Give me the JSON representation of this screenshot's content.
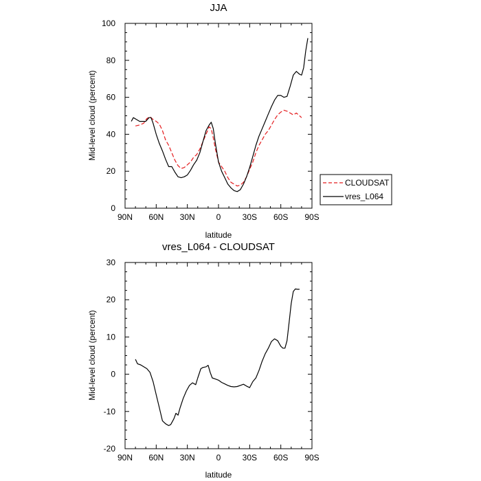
{
  "chart_data": [
    {
      "type": "line",
      "title": "JJA",
      "xlabel": "latitude",
      "ylabel": "Mid-level cloud (percent)",
      "xlim": [
        90,
        -90
      ],
      "ylim": [
        0,
        100
      ],
      "xticks": [
        90,
        60,
        30,
        0,
        -30,
        -60,
        -90
      ],
      "xticklabels": [
        "90N",
        "60N",
        "30N",
        "0",
        "30S",
        "60S",
        "90S"
      ],
      "yticks": [
        0,
        20,
        40,
        60,
        80,
        100
      ],
      "yticklabels": [
        "0",
        "20",
        "40",
        "60",
        "80",
        "100"
      ],
      "legend": {
        "position": "right",
        "entries": [
          "CLOUDSAT",
          "vres_L064"
        ]
      },
      "series": [
        {
          "name": "CLOUDSAT",
          "color": "#e41a1c",
          "dash": "dashed",
          "points": [
            [
              80,
              44.5
            ],
            [
              76,
              45
            ],
            [
              72,
              46
            ],
            [
              69,
              48.5
            ],
            [
              66,
              49.5
            ],
            [
              63,
              48
            ],
            [
              60,
              47
            ],
            [
              57,
              45.5
            ],
            [
              54,
              42
            ],
            [
              51,
              37
            ],
            [
              48,
              34
            ],
            [
              45,
              30
            ],
            [
              42,
              26
            ],
            [
              39,
              23
            ],
            [
              36,
              21.5
            ],
            [
              33,
              22
            ],
            [
              30,
              23.5
            ],
            [
              27,
              25
            ],
            [
              24,
              27.5
            ],
            [
              21,
              29
            ],
            [
              18,
              32
            ],
            [
              15,
              36
            ],
            [
              12,
              40
            ],
            [
              9,
              44
            ],
            [
              7,
              43
            ],
            [
              5,
              38
            ],
            [
              3,
              32
            ],
            [
              0,
              25
            ],
            [
              -3,
              22.5
            ],
            [
              -6,
              20
            ],
            [
              -9,
              16.5
            ],
            [
              -12,
              14
            ],
            [
              -15,
              13
            ],
            [
              -18,
              12
            ],
            [
              -21,
              12.5
            ],
            [
              -24,
              14
            ],
            [
              -27,
              17
            ],
            [
              -30,
              21
            ],
            [
              -33,
              25
            ],
            [
              -36,
              30
            ],
            [
              -39,
              34
            ],
            [
              -42,
              37
            ],
            [
              -45,
              40
            ],
            [
              -48,
              42
            ],
            [
              -51,
              45
            ],
            [
              -54,
              48
            ],
            [
              -57,
              50.5
            ],
            [
              -60,
              52
            ],
            [
              -63,
              53
            ],
            [
              -66,
              52.5
            ],
            [
              -69,
              51.5
            ],
            [
              -72,
              50.5
            ],
            [
              -75,
              51.5
            ],
            [
              -78,
              50
            ],
            [
              -80,
              49
            ]
          ]
        },
        {
          "name": "vres_L064",
          "color": "#000000",
          "dash": "solid",
          "points": [
            [
              84,
              47
            ],
            [
              82,
              49
            ],
            [
              79,
              48
            ],
            [
              76,
              47
            ],
            [
              73,
              47
            ],
            [
              70,
              47
            ],
            [
              67,
              49
            ],
            [
              65,
              49
            ],
            [
              63,
              46
            ],
            [
              60,
              40
            ],
            [
              57,
              35
            ],
            [
              54,
              31
            ],
            [
              51,
              26.5
            ],
            [
              48,
              22.5
            ],
            [
              45,
              22.5
            ],
            [
              42,
              19.5
            ],
            [
              39,
              17
            ],
            [
              36,
              16.5
            ],
            [
              33,
              17
            ],
            [
              30,
              18
            ],
            [
              27,
              20.5
            ],
            [
              24,
              23.5
            ],
            [
              21,
              26
            ],
            [
              18,
              30
            ],
            [
              15,
              36
            ],
            [
              12,
              42
            ],
            [
              9,
              45
            ],
            [
              7,
              46.5
            ],
            [
              5,
              43
            ],
            [
              3,
              35
            ],
            [
              0,
              25
            ],
            [
              -3,
              20
            ],
            [
              -6,
              16.5
            ],
            [
              -9,
              13
            ],
            [
              -12,
              11
            ],
            [
              -15,
              9.5
            ],
            [
              -18,
              9
            ],
            [
              -21,
              10
            ],
            [
              -24,
              13
            ],
            [
              -27,
              17
            ],
            [
              -30,
              22
            ],
            [
              -33,
              28
            ],
            [
              -36,
              34
            ],
            [
              -39,
              39
            ],
            [
              -42,
              43
            ],
            [
              -45,
              47
            ],
            [
              -48,
              51
            ],
            [
              -51,
              55
            ],
            [
              -54,
              58.5
            ],
            [
              -57,
              61
            ],
            [
              -60,
              61
            ],
            [
              -63,
              60
            ],
            [
              -66,
              60.5
            ],
            [
              -69,
              66
            ],
            [
              -72,
              72
            ],
            [
              -75,
              74
            ],
            [
              -78,
              72.5
            ],
            [
              -80,
              72
            ],
            [
              -82,
              76
            ],
            [
              -84,
              85
            ],
            [
              -86,
              92
            ]
          ]
        }
      ]
    },
    {
      "type": "line",
      "title": "vres_L064 - CLOUDSAT",
      "xlabel": "latitude",
      "ylabel": "Mid-level cloud (percent)",
      "xlim": [
        90,
        -90
      ],
      "ylim": [
        -20,
        30
      ],
      "xticks": [
        90,
        60,
        30,
        0,
        -30,
        -60,
        -90
      ],
      "xticklabels": [
        "90N",
        "60N",
        "30N",
        "0",
        "30S",
        "60S",
        "90S"
      ],
      "yticks": [
        -20,
        -10,
        0,
        10,
        20,
        30
      ],
      "yticklabels": [
        "-20",
        "-10",
        "0",
        "10",
        "20",
        "30"
      ],
      "series": [
        {
          "name": "vres_L064 - CLOUDSAT",
          "color": "#000000",
          "dash": "solid",
          "points": [
            [
              80,
              4
            ],
            [
              78,
              2.8
            ],
            [
              75,
              2.5
            ],
            [
              72,
              2
            ],
            [
              69,
              1.5
            ],
            [
              66,
              0.5
            ],
            [
              63,
              -2
            ],
            [
              60,
              -5.5
            ],
            [
              57,
              -9
            ],
            [
              54,
              -12.5
            ],
            [
              51,
              -13.3
            ],
            [
              48,
              -13.8
            ],
            [
              46,
              -13.5
            ],
            [
              43,
              -12
            ],
            [
              41,
              -10.5
            ],
            [
              39,
              -11
            ],
            [
              37,
              -9
            ],
            [
              34,
              -6.5
            ],
            [
              31,
              -4.5
            ],
            [
              28,
              -3
            ],
            [
              25,
              -2.3
            ],
            [
              22,
              -2.8
            ],
            [
              20,
              -1
            ],
            [
              17,
              1.5
            ],
            [
              15,
              1.8
            ],
            [
              12,
              2
            ],
            [
              10,
              2.4
            ],
            [
              8,
              0.5
            ],
            [
              6,
              -1
            ],
            [
              3,
              -1.3
            ],
            [
              0,
              -1.6
            ],
            [
              -3,
              -2.2
            ],
            [
              -6,
              -2.6
            ],
            [
              -9,
              -3
            ],
            [
              -12,
              -3.3
            ],
            [
              -15,
              -3.4
            ],
            [
              -18,
              -3.3
            ],
            [
              -21,
              -3
            ],
            [
              -24,
              -2.7
            ],
            [
              -27,
              -3.2
            ],
            [
              -30,
              -3.6
            ],
            [
              -33,
              -2
            ],
            [
              -36,
              -1
            ],
            [
              -39,
              1
            ],
            [
              -42,
              3.5
            ],
            [
              -45,
              5.5
            ],
            [
              -48,
              7
            ],
            [
              -51,
              8.8
            ],
            [
              -54,
              9.5
            ],
            [
              -57,
              9
            ],
            [
              -60,
              7.5
            ],
            [
              -62,
              7
            ],
            [
              -64,
              7
            ],
            [
              -66,
              9
            ],
            [
              -68,
              14
            ],
            [
              -70,
              19
            ],
            [
              -72,
              22.2
            ],
            [
              -74,
              22.9
            ],
            [
              -76,
              22.8
            ],
            [
              -78,
              22.8
            ]
          ]
        }
      ]
    }
  ]
}
